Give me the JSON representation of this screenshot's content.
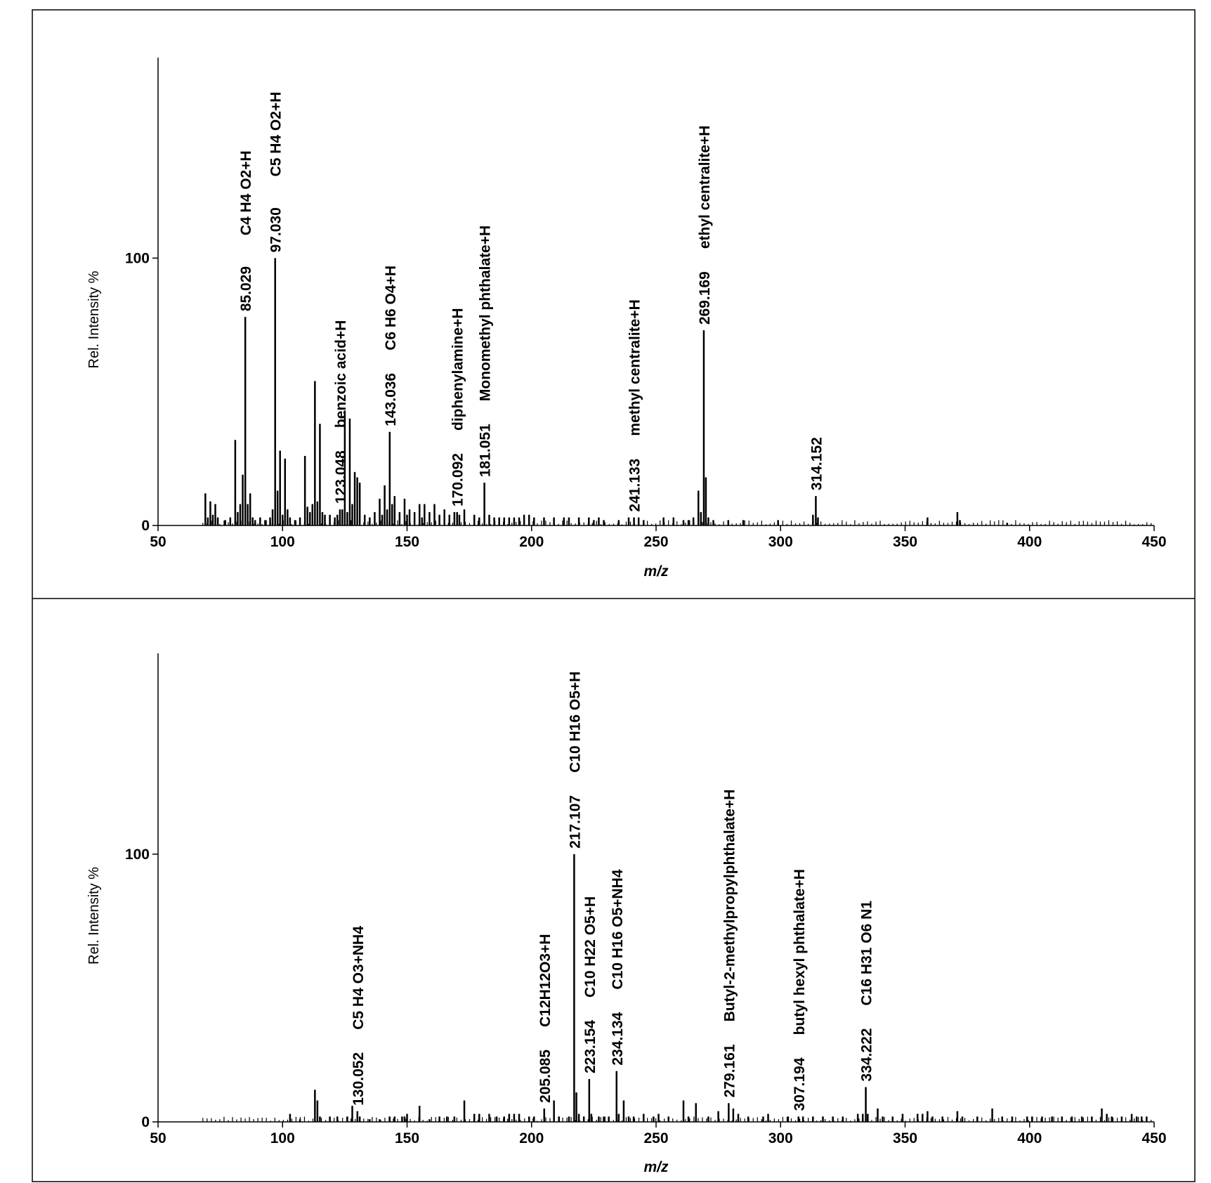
{
  "chart_data": [
    {
      "type": "bar",
      "panel": "top",
      "xlabel": "m/z",
      "ylabel": "Rel. Intensity %",
      "xlim": [
        50,
        450
      ],
      "ylim": [
        0,
        100
      ],
      "xticks": [
        "50",
        "100",
        "150",
        "200",
        "250",
        "300",
        "350",
        "400",
        "450"
      ],
      "yticks": [
        "0",
        "100"
      ],
      "grid": false,
      "annotations": [
        {
          "mz": 85.029,
          "mass_label": "85.029",
          "formula": "C4 H4 O2+H"
        },
        {
          "mz": 97.03,
          "mass_label": "97.030",
          "formula": "C5 H4 O2+H"
        },
        {
          "mz": 123.048,
          "mass_label": "123.048",
          "formula": "benzoic acid+H"
        },
        {
          "mz": 143.036,
          "mass_label": "143.036",
          "formula": "C6 H6 O4+H"
        },
        {
          "mz": 170.092,
          "mass_label": "170.092",
          "formula": "diphenylamine+H"
        },
        {
          "mz": 181.051,
          "mass_label": "181.051",
          "formula": "Monomethyl phthalate+H"
        },
        {
          "mz": 241.133,
          "mass_label": "241.133",
          "formula": "methyl centralite+H"
        },
        {
          "mz": 269.169,
          "mass_label": "269.169",
          "formula": "ethyl centralite+H"
        },
        {
          "mz": 314.152,
          "mass_label": "314.152",
          "formula": ""
        }
      ],
      "peaks": [
        [
          69,
          12
        ],
        [
          70,
          3
        ],
        [
          71,
          9
        ],
        [
          72,
          4
        ],
        [
          73,
          8
        ],
        [
          74,
          3
        ],
        [
          77,
          2
        ],
        [
          79,
          3
        ],
        [
          81,
          32
        ],
        [
          82,
          5
        ],
        [
          83,
          8
        ],
        [
          84,
          19
        ],
        [
          85.029,
          78
        ],
        [
          86,
          8
        ],
        [
          87,
          12
        ],
        [
          88,
          3
        ],
        [
          89,
          2
        ],
        [
          91,
          3
        ],
        [
          93,
          2
        ],
        [
          95,
          3
        ],
        [
          96,
          6
        ],
        [
          97.03,
          100
        ],
        [
          98,
          13
        ],
        [
          99,
          28
        ],
        [
          100,
          4
        ],
        [
          101,
          25
        ],
        [
          102,
          6
        ],
        [
          103,
          3
        ],
        [
          105,
          2
        ],
        [
          107,
          3
        ],
        [
          109,
          26
        ],
        [
          110,
          7
        ],
        [
          111,
          5
        ],
        [
          112,
          8
        ],
        [
          113,
          54
        ],
        [
          114,
          9
        ],
        [
          115,
          38
        ],
        [
          116,
          5
        ],
        [
          117,
          4
        ],
        [
          119,
          4
        ],
        [
          121,
          3
        ],
        [
          122,
          4
        ],
        [
          123.048,
          6
        ],
        [
          124,
          6
        ],
        [
          125,
          43
        ],
        [
          126,
          5
        ],
        [
          127,
          40
        ],
        [
          128,
          8
        ],
        [
          129,
          20
        ],
        [
          130,
          18
        ],
        [
          131,
          16
        ],
        [
          133,
          4
        ],
        [
          135,
          3
        ],
        [
          137,
          5
        ],
        [
          139,
          10
        ],
        [
          140,
          4
        ],
        [
          141,
          15
        ],
        [
          142,
          6
        ],
        [
          143.036,
          35
        ],
        [
          144,
          8
        ],
        [
          145,
          11
        ],
        [
          147,
          5
        ],
        [
          149,
          10
        ],
        [
          150,
          4
        ],
        [
          151,
          6
        ],
        [
          153,
          5
        ],
        [
          155,
          8
        ],
        [
          156,
          3
        ],
        [
          157,
          8
        ],
        [
          159,
          5
        ],
        [
          161,
          8
        ],
        [
          163,
          4
        ],
        [
          165,
          6
        ],
        [
          167,
          4
        ],
        [
          169,
          5
        ],
        [
          170.092,
          5
        ],
        [
          171,
          4
        ],
        [
          173,
          6
        ],
        [
          177,
          4
        ],
        [
          179,
          3
        ],
        [
          181.051,
          16
        ],
        [
          183,
          4
        ],
        [
          185,
          3
        ],
        [
          187,
          3
        ],
        [
          189,
          3
        ],
        [
          191,
          3
        ],
        [
          193,
          3
        ],
        [
          195,
          3
        ],
        [
          197,
          4
        ],
        [
          199,
          4
        ],
        [
          201,
          3
        ],
        [
          205,
          3
        ],
        [
          209,
          3
        ],
        [
          213,
          3
        ],
        [
          215,
          3
        ],
        [
          219,
          3
        ],
        [
          223,
          3
        ],
        [
          225,
          2
        ],
        [
          227,
          3
        ],
        [
          229,
          2
        ],
        [
          235,
          2
        ],
        [
          239,
          3
        ],
        [
          241.133,
          3
        ],
        [
          243,
          3
        ],
        [
          245,
          2
        ],
        [
          253,
          3
        ],
        [
          257,
          3
        ],
        [
          261,
          2
        ],
        [
          263,
          2
        ],
        [
          265,
          3
        ],
        [
          267,
          13
        ],
        [
          268,
          5
        ],
        [
          269.169,
          73
        ],
        [
          270,
          18
        ],
        [
          271,
          3
        ],
        [
          273,
          2
        ],
        [
          279,
          2
        ],
        [
          285,
          2
        ],
        [
          299,
          2
        ],
        [
          313,
          4
        ],
        [
          314.152,
          11
        ],
        [
          315,
          3
        ],
        [
          359,
          3
        ],
        [
          371,
          5
        ],
        [
          372,
          2
        ],
        [
          391,
          1
        ]
      ]
    },
    {
      "type": "bar",
      "panel": "bottom",
      "xlabel": "m/z",
      "ylabel": "Rel. Intensity %",
      "xlim": [
        50,
        450
      ],
      "ylim": [
        0,
        100
      ],
      "xticks": [
        "50",
        "100",
        "150",
        "200",
        "250",
        "300",
        "350",
        "400",
        "450"
      ],
      "yticks": [
        "0",
        "100"
      ],
      "grid": false,
      "annotations": [
        {
          "mz": 130.052,
          "mass_label": "130.052",
          "formula": "C5 H4 O3+NH4"
        },
        {
          "mz": 205.085,
          "mass_label": "205.085",
          "formula": "C12H12O3+H"
        },
        {
          "mz": 217.107,
          "mass_label": "217.107",
          "formula": "C10 H16 O5+H"
        },
        {
          "mz": 223.154,
          "mass_label": "223.154",
          "formula": "C10 H22 O5+H"
        },
        {
          "mz": 234.134,
          "mass_label": "234.134",
          "formula": "C10 H16 O5+NH4"
        },
        {
          "mz": 279.161,
          "mass_label": "279.161",
          "formula": "Butyl-2-methylpropylphthalate+H"
        },
        {
          "mz": 307.194,
          "mass_label": "307.194",
          "formula": "butyl hexyl phthalate+H"
        },
        {
          "mz": 334.222,
          "mass_label": "334.222",
          "formula": "C16 H31 O6 N1"
        }
      ],
      "peaks": [
        [
          103,
          3
        ],
        [
          107,
          1
        ],
        [
          113,
          12
        ],
        [
          114,
          8
        ],
        [
          115,
          2
        ],
        [
          119,
          2
        ],
        [
          122,
          2
        ],
        [
          126,
          2
        ],
        [
          128,
          6
        ],
        [
          130.052,
          4
        ],
        [
          131,
          2
        ],
        [
          135,
          1
        ],
        [
          139,
          1
        ],
        [
          143,
          2
        ],
        [
          145,
          2
        ],
        [
          148,
          2
        ],
        [
          149,
          2
        ],
        [
          150,
          3
        ],
        [
          155,
          6
        ],
        [
          159,
          1
        ],
        [
          163,
          2
        ],
        [
          166,
          2
        ],
        [
          169,
          2
        ],
        [
          173,
          8
        ],
        [
          177,
          3
        ],
        [
          179,
          3
        ],
        [
          183,
          3
        ],
        [
          186,
          2
        ],
        [
          189,
          2
        ],
        [
          191,
          3
        ],
        [
          193,
          3
        ],
        [
          195,
          3
        ],
        [
          199,
          2
        ],
        [
          201,
          2
        ],
        [
          205.085,
          5
        ],
        [
          209,
          8
        ],
        [
          211,
          2
        ],
        [
          215,
          2
        ],
        [
          217.107,
          100
        ],
        [
          218,
          11
        ],
        [
          219,
          3
        ],
        [
          221,
          2
        ],
        [
          223.154,
          16
        ],
        [
          224,
          3
        ],
        [
          227,
          2
        ],
        [
          229,
          2
        ],
        [
          231,
          2
        ],
        [
          234.134,
          19
        ],
        [
          235,
          3
        ],
        [
          237,
          8
        ],
        [
          239,
          2
        ],
        [
          241,
          2
        ],
        [
          245,
          3
        ],
        [
          249,
          2
        ],
        [
          251,
          3
        ],
        [
          255,
          2
        ],
        [
          261,
          8
        ],
        [
          263,
          2
        ],
        [
          266,
          7
        ],
        [
          271,
          2
        ],
        [
          275,
          4
        ],
        [
          279.161,
          7
        ],
        [
          281,
          5
        ],
        [
          283,
          3
        ],
        [
          287,
          2
        ],
        [
          293,
          2
        ],
        [
          295,
          3
        ],
        [
          303,
          2
        ],
        [
          307.194,
          2
        ],
        [
          309,
          2
        ],
        [
          313,
          2
        ],
        [
          317,
          2
        ],
        [
          321,
          2
        ],
        [
          325,
          2
        ],
        [
          331,
          3
        ],
        [
          333,
          3
        ],
        [
          334.222,
          13
        ],
        [
          335,
          3
        ],
        [
          339,
          5
        ],
        [
          341,
          2
        ],
        [
          345,
          2
        ],
        [
          349,
          3
        ],
        [
          355,
          3
        ],
        [
          357,
          3
        ],
        [
          359,
          4
        ],
        [
          361,
          2
        ],
        [
          365,
          2
        ],
        [
          371,
          4
        ],
        [
          373,
          2
        ],
        [
          379,
          2
        ],
        [
          385,
          5
        ],
        [
          389,
          2
        ],
        [
          393,
          2
        ],
        [
          399,
          2
        ],
        [
          401,
          2
        ],
        [
          405,
          2
        ],
        [
          409,
          2
        ],
        [
          413,
          2
        ],
        [
          417,
          2
        ],
        [
          421,
          2
        ],
        [
          425,
          2
        ],
        [
          429,
          5
        ],
        [
          431,
          3
        ],
        [
          433,
          2
        ],
        [
          437,
          2
        ],
        [
          441,
          3
        ],
        [
          443,
          2
        ],
        [
          445,
          2
        ],
        [
          447,
          2
        ]
      ]
    }
  ]
}
